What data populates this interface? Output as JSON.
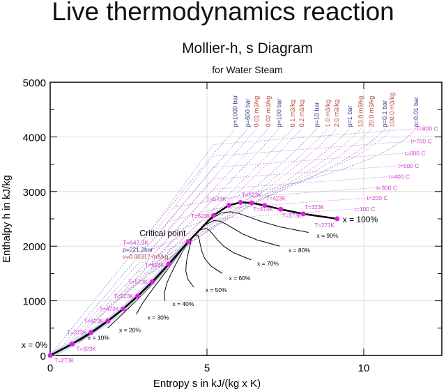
{
  "title": "Live thermodynamics reaction",
  "chart_data": {
    "type": "line",
    "title": "Mollier-h, s Diagram",
    "subtitle": "for Water Steam",
    "xlabel": "Entropy s in kJ/(kg x K)",
    "ylabel": "Enthalpy h in kJ/kg",
    "xlim": [
      0,
      12.8
    ],
    "ylim": [
      0,
      5000
    ],
    "xticks": [
      "0",
      "5",
      "10"
    ],
    "xtick_values": [
      0,
      5,
      10
    ],
    "yticks": [
      "0",
      "1000",
      "2000",
      "3000",
      "4000",
      "5000"
    ],
    "ytick_values": [
      0,
      1000,
      2000,
      3000,
      4000,
      5000
    ],
    "grid": true,
    "temperatures": [
      "T=273K",
      "T=323K",
      "T=373K",
      "T=423K",
      "T=473K",
      "T=523K",
      "T=573K",
      "T=623K"
    ],
    "sat_liquid": {
      "s": [
        0,
        0.7,
        1.3,
        1.84,
        2.33,
        2.79,
        3.25,
        3.78
      ],
      "h": [
        0,
        209,
        419,
        632,
        852,
        1086,
        1345,
        1671
      ]
    },
    "sat_vapor": {
      "s": [
        9.15,
        8.07,
        7.35,
        6.84,
        6.43,
        6.07,
        5.7,
        5.21
      ],
      "h": [
        2501,
        2591,
        2675,
        2746,
        2792,
        2801,
        2749,
        2563
      ]
    },
    "critical_point": {
      "s": 4.41,
      "h": 2084,
      "label": "Critical point",
      "T": "T=647.3K",
      "p": "p=221.2bar",
      "v": "v=0.00317 m3/kg"
    },
    "x0_label": "x = 0%",
    "x100_label": "x = 100%",
    "quality_lines": [
      {
        "x": 0.1,
        "label": "x = 10%",
        "ls": 1.2,
        "lh": 290
      },
      {
        "x": 0.2,
        "label": "x = 20%",
        "ls": 2.2,
        "lh": 430
      },
      {
        "x": 0.3,
        "label": "x = 30%",
        "ls": 3.1,
        "lh": 660
      },
      {
        "x": 0.4,
        "label": "x = 40%",
        "ls": 3.9,
        "lh": 905
      },
      {
        "x": 0.5,
        "label": "x = 50%",
        "ls": 4.95,
        "lh": 1160
      },
      {
        "x": 0.6,
        "label": "x = 60%",
        "ls": 5.7,
        "lh": 1380
      },
      {
        "x": 0.7,
        "label": "x = 70%",
        "ls": 6.6,
        "lh": 1645
      },
      {
        "x": 0.8,
        "label": "x = 80%",
        "ls": 7.6,
        "lh": 1890
      },
      {
        "x": 0.9,
        "label": "x = 90%",
        "ls": 8.5,
        "lh": 2155
      }
    ],
    "isotherms": [
      {
        "label": "t=100 C",
        "s": 9.7,
        "h": 2680
      },
      {
        "label": "t=200 C",
        "s": 10.1,
        "h": 2880
      },
      {
        "label": "t=300 C",
        "s": 10.4,
        "h": 3070
      },
      {
        "label": "t=400 C",
        "s": 10.8,
        "h": 3270
      },
      {
        "label": "t=500 C",
        "s": 11.1,
        "h": 3470
      },
      {
        "label": "t=600 C",
        "s": 11.3,
        "h": 3700
      },
      {
        "label": "t=700 C",
        "s": 11.5,
        "h": 3920
      },
      {
        "label": "t=800 C",
        "s": 11.7,
        "h": 4150
      }
    ],
    "top_labels": [
      {
        "label": "p=1000 bar",
        "s": 5.9,
        "kind": "p"
      },
      {
        "label": "p=600 bar",
        "s": 6.3,
        "kind": "p"
      },
      {
        "label": "0.01 m3/kg",
        "s": 6.58,
        "kind": "v"
      },
      {
        "label": "0.02 m3/kg",
        "s": 6.95,
        "kind": "v"
      },
      {
        "label": "p=100 bar",
        "s": 7.3,
        "kind": "p"
      },
      {
        "label": "0.1 m3/kg",
        "s": 7.73,
        "kind": "v"
      },
      {
        "label": "0.2 m3/kg",
        "s": 8.02,
        "kind": "v"
      },
      {
        "label": "p=10 bar",
        "s": 8.5,
        "kind": "p"
      },
      {
        "label": "1.0 m3/kg",
        "s": 8.85,
        "kind": "v"
      },
      {
        "label": "2.0 m3/kg",
        "s": 9.13,
        "kind": "v"
      },
      {
        "label": "p=1 bar",
        "s": 9.55,
        "kind": "p"
      },
      {
        "label": "10.0 m3/kg",
        "s": 9.9,
        "kind": "v"
      },
      {
        "label": "20.0 m3/kg",
        "s": 10.24,
        "kind": "v"
      },
      {
        "label": "p=0.1 bar",
        "s": 10.67,
        "kind": "p"
      },
      {
        "label": "100.0 m3/kg",
        "s": 10.9,
        "kind": "v"
      },
      {
        "label": "p=0.01 bar",
        "s": 11.67,
        "kind": "p"
      }
    ],
    "colors": {
      "pressure": "#3a3a90",
      "volume": "#b5483c",
      "temp": "#d040d0",
      "marker": "#e020e0"
    }
  }
}
